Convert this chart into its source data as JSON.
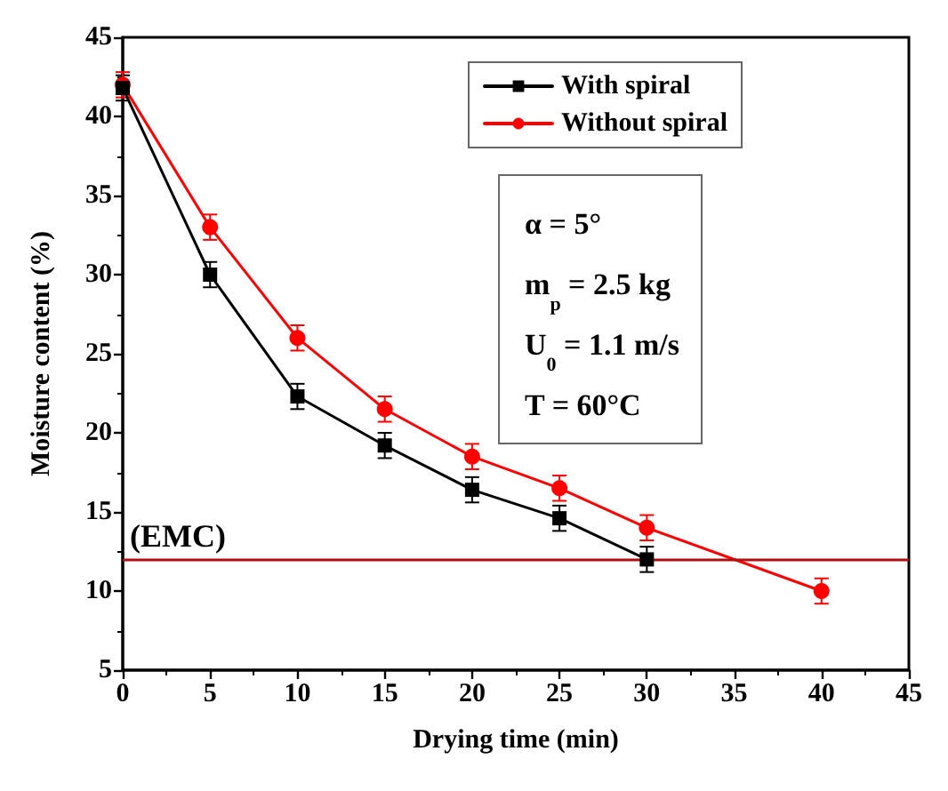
{
  "chart_data": {
    "type": "line",
    "xlabel": "Drying time (min)",
    "ylabel": "Moisture content (%)",
    "xlim": [
      0,
      45
    ],
    "xticks": [
      0,
      5,
      10,
      15,
      20,
      25,
      30,
      35,
      40,
      45
    ],
    "ylim": [
      5,
      45
    ],
    "yticks": [
      5,
      10,
      15,
      20,
      25,
      30,
      35,
      40,
      45
    ],
    "grid": false,
    "legend": "top right",
    "series": [
      {
        "name": "With spiral",
        "color": "#000000",
        "marker": "square",
        "x": [
          0,
          5,
          10,
          15,
          20,
          25,
          30
        ],
        "values": [
          41.8,
          30,
          22.3,
          19.2,
          16.4,
          14.6,
          12
        ],
        "errors": [
          0.8,
          0.8,
          0.8,
          0.8,
          0.8,
          0.8,
          0.8
        ]
      },
      {
        "name": "Without spiral",
        "color": "#ff0000",
        "marker": "circle",
        "x": [
          0,
          5,
          10,
          15,
          20,
          25,
          30,
          40
        ],
        "values": [
          42,
          33,
          26,
          21.5,
          18.5,
          16.5,
          14,
          10
        ],
        "errors": [
          0.8,
          0.8,
          0.8,
          0.8,
          0.8,
          0.8,
          0.8,
          0.8
        ]
      }
    ],
    "ref_lines": [
      {
        "axis": "y",
        "value": 12,
        "label": "(EMC)",
        "color": "#b01010"
      }
    ],
    "annotations": [
      "α = 5°",
      "m$_{p}$ = 2.5 kg",
      "U$_{0}$ = 1.1 m/s",
      "T = 60°C"
    ]
  }
}
